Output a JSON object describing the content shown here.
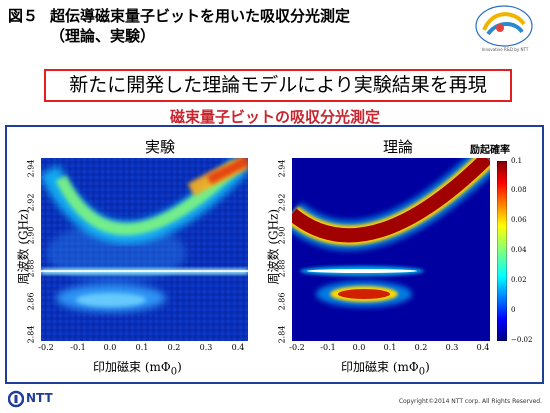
{
  "slide": {
    "fig_num": "図５",
    "title_line1": "超伝導磁束量子ビットを用いた吸収分光測定",
    "title_line2": "（理論、実験）",
    "banner": "新たに開発した理論モデルにより実験結果を再現",
    "subtitle": "磁束量子ビットの吸収分光測定",
    "logo_caption": "Innovative R&D by NTT",
    "company": "NTT",
    "copyright": "Copyright©2014 NTT corp. All Rights Reserved."
  },
  "plots": {
    "experiment": {
      "title": "実験"
    },
    "theory": {
      "title": "理論"
    },
    "ylabel": "周波数 (GHz)",
    "xlabel_text": "印加磁束",
    "xlabel_unit": "(mΦ",
    "xlabel_sub": "0",
    "xlabel_close": ")",
    "yticks": [
      "2.84",
      "2.86",
      "2.88",
      "2.90",
      "2.92",
      "2.94"
    ],
    "xticks": [
      "-0.2",
      "-0.1",
      "0.0",
      "0.1",
      "0.2",
      "0.3",
      "0.4"
    ]
  },
  "colorbar": {
    "title": "励起確率",
    "ticks": [
      "0.1",
      "0.08",
      "0.06",
      "0.04",
      "0.02",
      "0",
      "−0.02"
    ]
  },
  "chart_data": [
    {
      "type": "heatmap",
      "title": "実験",
      "xlabel": "印加磁束 (mΦ0)",
      "ylabel": "周波数 (GHz)",
      "xlim": [
        -0.22,
        0.42
      ],
      "ylim": [
        2.835,
        2.945
      ],
      "features": [
        {
          "kind": "parabolic-band",
          "vertex_x": 0.0,
          "vertex_y": 2.895
        },
        {
          "kind": "horizontal-line",
          "y": 2.879
        },
        {
          "kind": "blob",
          "x": 0.0,
          "y": 2.862
        }
      ]
    },
    {
      "type": "heatmap",
      "title": "理論",
      "xlabel": "印加磁束 (mΦ0)",
      "ylabel": "周波数 (GHz)",
      "xlim": [
        -0.22,
        0.42
      ],
      "ylim": [
        2.835,
        2.945
      ],
      "colorbar_range": [
        -0.02,
        0.1
      ],
      "features": [
        {
          "kind": "parabolic-band",
          "vertex_x": 0.0,
          "vertex_y": 2.899
        },
        {
          "kind": "horizontal-line",
          "y": 2.879
        },
        {
          "kind": "blob",
          "x": 0.0,
          "y": 2.864
        }
      ]
    }
  ]
}
